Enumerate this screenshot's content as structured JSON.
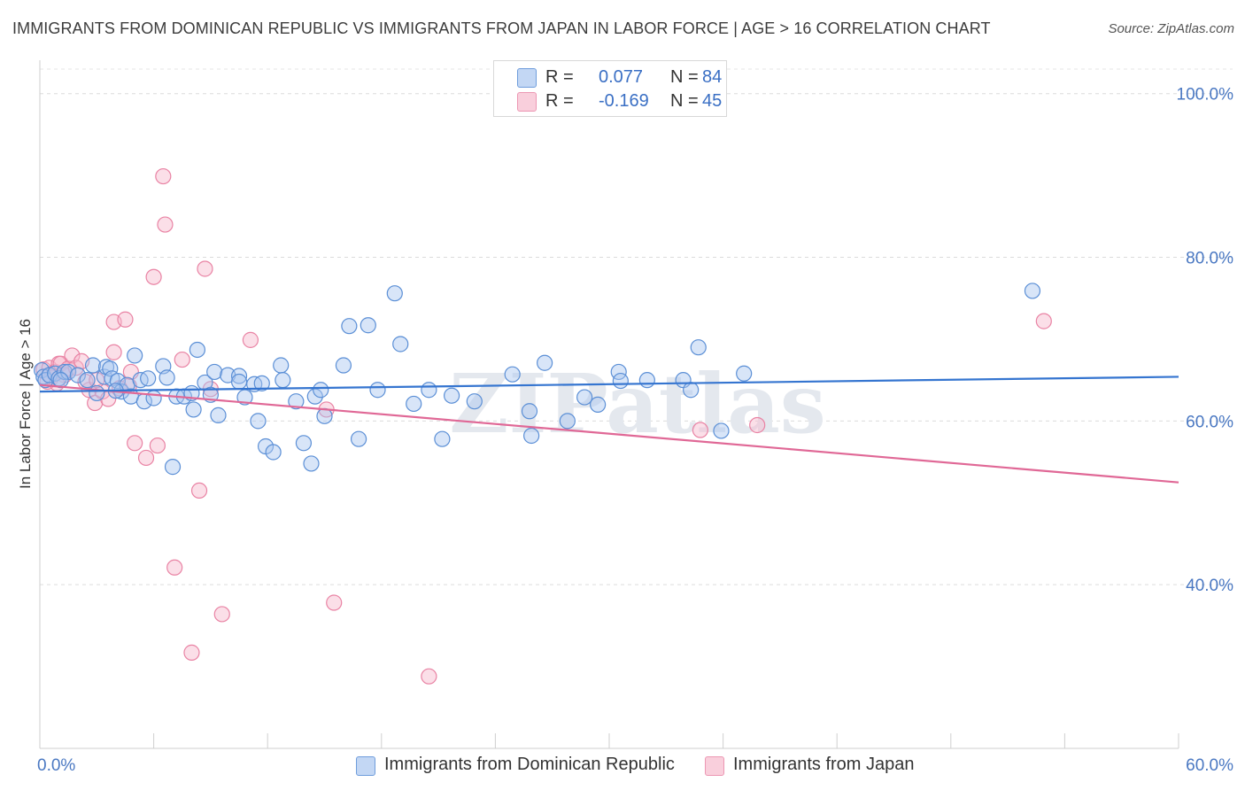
{
  "title": "IMMIGRANTS FROM DOMINICAN REPUBLIC VS IMMIGRANTS FROM JAPAN IN LABOR FORCE | AGE > 16 CORRELATION CHART",
  "source": "Source: ZipAtlas.com",
  "watermark": "ZIPatlas",
  "legend": {
    "rows": [
      {
        "r_label": "R =",
        "r_value": "0.077",
        "n_label": "N =",
        "n_value": "84"
      },
      {
        "r_label": "R =",
        "r_value": "-0.169",
        "n_label": "N =",
        "n_value": "45"
      }
    ]
  },
  "bottom_legend": {
    "series1": "Immigrants from Dominican Republic",
    "series2": "Immigrants from Japan"
  },
  "chart_data": {
    "type": "scatter",
    "title": "IMMIGRANTS FROM DOMINICAN REPUBLIC VS IMMIGRANTS FROM JAPAN IN LABOR FORCE | AGE > 16 CORRELATION CHART",
    "xlabel": "",
    "ylabel": "In Labor Force | Age > 16",
    "xlim": [
      0,
      60
    ],
    "ylim": [
      20,
      103
    ],
    "x_tick_labels": [
      "0.0%",
      "60.0%"
    ],
    "y_ticks": [
      40,
      60,
      80,
      100
    ],
    "y_tick_labels": [
      "40.0%",
      "60.0%",
      "80.0%",
      "100.0%"
    ],
    "grid": "horizontal dashed",
    "legend_position": "top-center",
    "colors": {
      "series1_fill": "#a9c6f0",
      "series1_stroke": "#5b8fd6",
      "series1_line": "#3575d0",
      "series2_fill": "#f6b9cc",
      "series2_stroke": "#e983a4",
      "series2_line": "#e06896"
    },
    "series": [
      {
        "name": "Immigrants from Dominican Republic",
        "R": 0.077,
        "N": 84,
        "trend": [
          [
            0,
            63.6
          ],
          [
            60,
            65.4
          ]
        ],
        "points": [
          [
            0.1,
            66.2
          ],
          [
            0.2,
            65.4
          ],
          [
            0.3,
            65.0
          ],
          [
            0.5,
            65.6
          ],
          [
            0.8,
            65.8
          ],
          [
            1.0,
            65.2
          ],
          [
            1.3,
            66.0
          ],
          [
            1.5,
            66.0
          ],
          [
            2.0,
            65.6
          ],
          [
            2.5,
            65.0
          ],
          [
            2.8,
            66.8
          ],
          [
            3.0,
            63.4
          ],
          [
            3.4,
            65.4
          ],
          [
            3.5,
            66.6
          ],
          [
            3.7,
            66.4
          ],
          [
            3.8,
            65.2
          ],
          [
            4.1,
            64.9
          ],
          [
            4.3,
            63.6
          ],
          [
            4.6,
            64.4
          ],
          [
            4.8,
            63.0
          ],
          [
            5.0,
            68.0
          ],
          [
            5.3,
            65.0
          ],
          [
            5.5,
            62.4
          ],
          [
            5.7,
            65.2
          ],
          [
            6.0,
            62.8
          ],
          [
            6.5,
            66.7
          ],
          [
            6.7,
            65.3
          ],
          [
            7.0,
            54.4
          ],
          [
            7.2,
            63.0
          ],
          [
            7.6,
            63.0
          ],
          [
            8.0,
            63.4
          ],
          [
            8.1,
            61.4
          ],
          [
            8.3,
            68.7
          ],
          [
            8.7,
            64.7
          ],
          [
            9.0,
            63.2
          ],
          [
            9.2,
            66.0
          ],
          [
            9.4,
            60.7
          ],
          [
            9.9,
            65.6
          ],
          [
            10.5,
            65.5
          ],
          [
            10.5,
            64.8
          ],
          [
            10.8,
            62.9
          ],
          [
            11.3,
            64.5
          ],
          [
            11.5,
            60.0
          ],
          [
            11.7,
            64.6
          ],
          [
            11.9,
            56.9
          ],
          [
            12.3,
            56.2
          ],
          [
            12.7,
            66.8
          ],
          [
            12.8,
            65.0
          ],
          [
            13.5,
            62.4
          ],
          [
            13.9,
            57.3
          ],
          [
            14.3,
            54.8
          ],
          [
            14.5,
            63.0
          ],
          [
            14.8,
            63.8
          ],
          [
            15.0,
            60.6
          ],
          [
            16.0,
            66.8
          ],
          [
            16.3,
            71.6
          ],
          [
            16.8,
            57.8
          ],
          [
            17.3,
            71.7
          ],
          [
            17.8,
            63.8
          ],
          [
            18.7,
            75.6
          ],
          [
            19.0,
            69.4
          ],
          [
            19.7,
            62.1
          ],
          [
            20.5,
            63.8
          ],
          [
            21.2,
            57.8
          ],
          [
            21.7,
            63.1
          ],
          [
            22.9,
            62.4
          ],
          [
            24.9,
            65.7
          ],
          [
            25.8,
            61.2
          ],
          [
            25.9,
            58.2
          ],
          [
            26.6,
            67.1
          ],
          [
            27.8,
            60.0
          ],
          [
            28.7,
            62.9
          ],
          [
            29.4,
            62.0
          ],
          [
            30.5,
            66.0
          ],
          [
            30.6,
            64.9
          ],
          [
            32.0,
            65.0
          ],
          [
            33.9,
            65.0
          ],
          [
            34.3,
            63.8
          ],
          [
            34.7,
            69.0
          ],
          [
            35.9,
            58.8
          ],
          [
            37.1,
            65.8
          ],
          [
            52.3,
            75.9
          ],
          [
            1.1,
            65.0
          ],
          [
            4.0,
            63.7
          ]
        ]
      },
      {
        "name": "Immigrants from Japan",
        "R": -0.169,
        "N": 45,
        "trend": [
          [
            0,
            64.4
          ],
          [
            60,
            52.5
          ]
        ],
        "points": [
          [
            0.2,
            66.3
          ],
          [
            0.4,
            64.8
          ],
          [
            0.5,
            66.5
          ],
          [
            0.6,
            65.3
          ],
          [
            0.8,
            66.0
          ],
          [
            1.0,
            67.0
          ],
          [
            1.1,
            67.0
          ],
          [
            1.3,
            65.6
          ],
          [
            1.5,
            66.4
          ],
          [
            1.7,
            68.0
          ],
          [
            1.9,
            66.5
          ],
          [
            2.2,
            67.3
          ],
          [
            2.6,
            63.8
          ],
          [
            2.9,
            62.2
          ],
          [
            3.3,
            63.6
          ],
          [
            3.6,
            62.7
          ],
          [
            3.9,
            72.1
          ],
          [
            3.9,
            68.4
          ],
          [
            4.5,
            72.4
          ],
          [
            4.7,
            64.3
          ],
          [
            4.8,
            66.0
          ],
          [
            5.0,
            57.3
          ],
          [
            5.6,
            55.5
          ],
          [
            6.2,
            57.0
          ],
          [
            6.0,
            77.6
          ],
          [
            6.5,
            89.9
          ],
          [
            6.6,
            84.0
          ],
          [
            7.1,
            42.1
          ],
          [
            7.5,
            67.5
          ],
          [
            8.0,
            31.7
          ],
          [
            8.4,
            51.5
          ],
          [
            8.7,
            78.6
          ],
          [
            9.0,
            63.9
          ],
          [
            9.6,
            36.4
          ],
          [
            11.1,
            69.9
          ],
          [
            15.1,
            61.4
          ],
          [
            15.5,
            37.8
          ],
          [
            20.5,
            28.8
          ],
          [
            34.8,
            58.9
          ],
          [
            37.8,
            59.5
          ],
          [
            52.9,
            72.2
          ],
          [
            0.9,
            64.6
          ],
          [
            2.4,
            64.8
          ],
          [
            4.2,
            64.0
          ],
          [
            3.0,
            65.0
          ]
        ]
      }
    ]
  }
}
